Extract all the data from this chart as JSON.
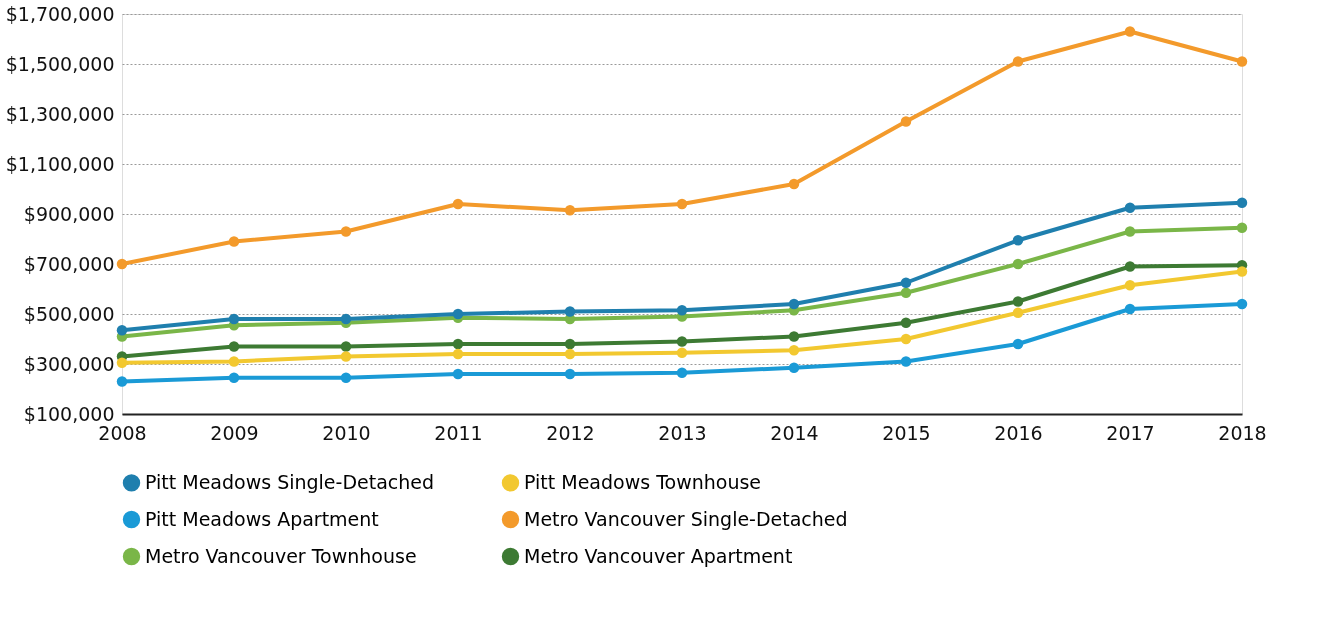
{
  "chart_data": {
    "type": "line",
    "categories": [
      "2008",
      "2009",
      "2010",
      "2011",
      "2012",
      "2013",
      "2014",
      "2015",
      "2016",
      "2017",
      "2018"
    ],
    "ylim": [
      100000,
      1700000
    ],
    "yticks": [
      {
        "value": 100000,
        "label": "$100,000"
      },
      {
        "value": 300000,
        "label": "$300,000"
      },
      {
        "value": 500000,
        "label": "$500,000"
      },
      {
        "value": 700000,
        "label": "$700,000"
      },
      {
        "value": 900000,
        "label": "$900,000"
      },
      {
        "value": 1100000,
        "label": "$1,100,000"
      },
      {
        "value": 1300000,
        "label": "$1,300,000"
      },
      {
        "value": 1500000,
        "label": "$1,500,000"
      },
      {
        "value": 1700000,
        "label": "$1,700,000"
      }
    ],
    "grid": "y",
    "legend": "bottom",
    "marker": "circle",
    "line_style": "solid",
    "series": [
      {
        "name": "Pitt Meadows Single-Detached",
        "color": "#1f7fae",
        "values": [
          435000,
          480000,
          480000,
          500000,
          510000,
          515000,
          540000,
          625000,
          795000,
          925000,
          945000
        ]
      },
      {
        "name": "Pitt Meadows Townhouse",
        "color": "#f2c830",
        "values": [
          305000,
          310000,
          330000,
          340000,
          340000,
          345000,
          355000,
          400000,
          505000,
          615000,
          670000
        ]
      },
      {
        "name": "Pitt Meadows Apartment",
        "color": "#1a9ad6",
        "values": [
          230000,
          245000,
          245000,
          260000,
          260000,
          265000,
          285000,
          310000,
          380000,
          520000,
          540000
        ]
      },
      {
        "name": "Metro Vancouver Single-Detached",
        "color": "#f39a2b",
        "values": [
          700000,
          790000,
          830000,
          940000,
          915000,
          940000,
          1020000,
          1270000,
          1510000,
          1630000,
          1510000
        ]
      },
      {
        "name": "Metro Vancouver Townhouse",
        "color": "#7ab648",
        "values": [
          410000,
          455000,
          465000,
          485000,
          480000,
          490000,
          515000,
          585000,
          700000,
          830000,
          845000
        ]
      },
      {
        "name": "Metro Vancouver Apartment",
        "color": "#3d7a33",
        "values": [
          330000,
          370000,
          370000,
          380000,
          380000,
          390000,
          410000,
          465000,
          550000,
          690000,
          695000
        ]
      }
    ]
  }
}
